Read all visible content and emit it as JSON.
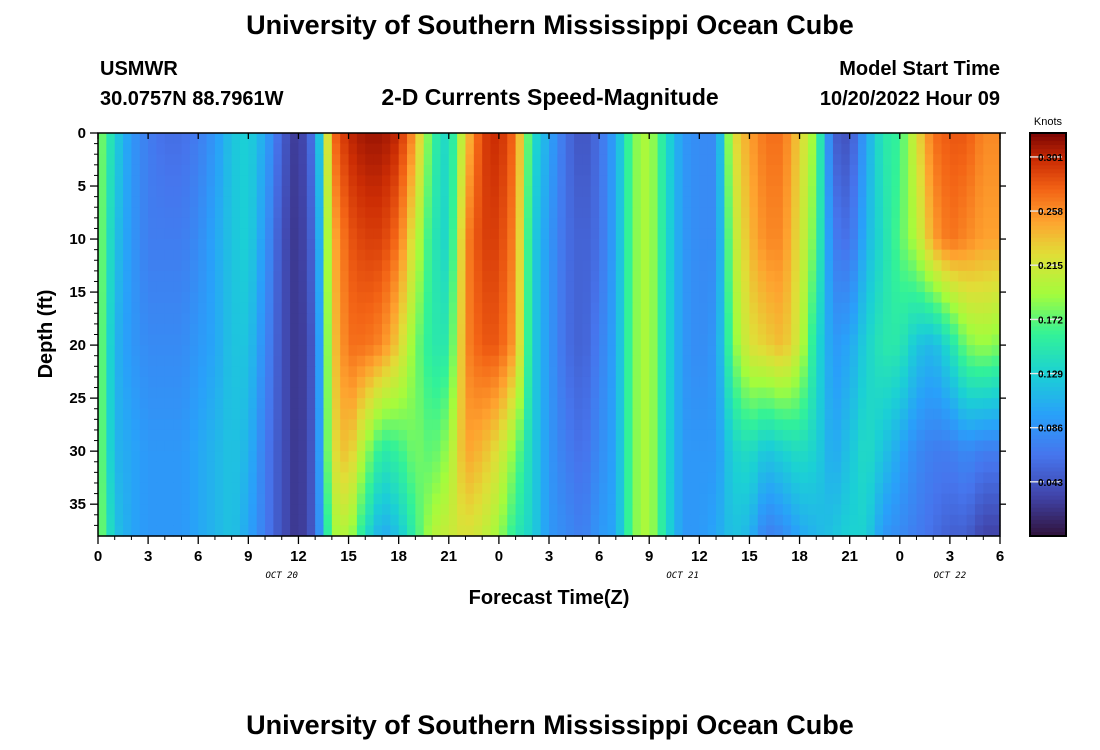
{
  "page": {
    "title": "University of Southern Mississippi Ocean Cube",
    "station": "USMWR",
    "coords": "30.0757N  88.7961W",
    "model_start_label": "Model Start Time",
    "model_start_value": "10/20/2022 Hour 09",
    "footer_title": "University of Southern Mississippi Ocean Cube"
  },
  "chart_data": {
    "type": "heatmap",
    "title": "2-D Currents Speed-Magnitude",
    "xlabel": "Forecast Time(Z)",
    "ylabel": "Depth (ft)",
    "x_tick_labels": [
      "0",
      "3",
      "6",
      "9",
      "12",
      "15",
      "18",
      "21",
      "0",
      "3",
      "6",
      "9",
      "12",
      "15",
      "18",
      "21",
      "0",
      "3",
      "6"
    ],
    "x_hours": [
      0,
      54
    ],
    "y_tick_labels": [
      "0",
      "5",
      "10",
      "15",
      "20",
      "25",
      "30",
      "35"
    ],
    "y_values": [
      0,
      5,
      10,
      15,
      20,
      25,
      30,
      35
    ],
    "ylim": [
      0,
      38
    ],
    "y_inverted": true,
    "date_labels": [
      {
        "text": "OCT 20",
        "hour": 11
      },
      {
        "text": "OCT 21",
        "hour": 35
      },
      {
        "text": "OCT 22",
        "hour": 51
      }
    ],
    "colorbar": {
      "unit": "Knots",
      "min": 0.0,
      "max": 0.32,
      "ticks": [
        "0.301",
        "0.258",
        "0.215",
        "0.172",
        "0.129",
        "0.086",
        "0.043"
      ],
      "tick_values": [
        0.301,
        0.258,
        0.215,
        0.172,
        0.129,
        0.086,
        0.043
      ],
      "colormap": "turbo"
    },
    "profile_hours": [
      0,
      1,
      2,
      3,
      4,
      5,
      6,
      7,
      8,
      9,
      10,
      11,
      12,
      13,
      14,
      15,
      16,
      17,
      18,
      19,
      20,
      21,
      22,
      23,
      24,
      25,
      26,
      27,
      28,
      29,
      30,
      31,
      32,
      33,
      34,
      35,
      36,
      37,
      38,
      39,
      40,
      41,
      42,
      43,
      44,
      45,
      46,
      47,
      48,
      49,
      50,
      51,
      52,
      53,
      54
    ],
    "profile_depths": [
      0,
      10,
      20,
      30,
      38
    ],
    "speed_profiles": [
      [
        0.19,
        0.19,
        0.19,
        0.19,
        0.19
      ],
      [
        0.13,
        0.12,
        0.11,
        0.11,
        0.12
      ],
      [
        0.09,
        0.09,
        0.09,
        0.1,
        0.1
      ],
      [
        0.07,
        0.07,
        0.08,
        0.09,
        0.09
      ],
      [
        0.06,
        0.07,
        0.08,
        0.09,
        0.09
      ],
      [
        0.06,
        0.07,
        0.08,
        0.09,
        0.09
      ],
      [
        0.07,
        0.08,
        0.09,
        0.1,
        0.1
      ],
      [
        0.09,
        0.1,
        0.1,
        0.11,
        0.11
      ],
      [
        0.12,
        0.12,
        0.12,
        0.12,
        0.12
      ],
      [
        0.13,
        0.13,
        0.12,
        0.11,
        0.1
      ],
      [
        0.1,
        0.09,
        0.08,
        0.07,
        0.07
      ],
      [
        0.05,
        0.04,
        0.04,
        0.04,
        0.04
      ],
      [
        0.02,
        0.02,
        0.02,
        0.02,
        0.02
      ],
      [
        0.07,
        0.06,
        0.05,
        0.05,
        0.05
      ],
      [
        0.27,
        0.24,
        0.23,
        0.22,
        0.19
      ],
      [
        0.3,
        0.28,
        0.27,
        0.24,
        0.2
      ],
      [
        0.31,
        0.29,
        0.27,
        0.19,
        0.14
      ],
      [
        0.31,
        0.29,
        0.26,
        0.15,
        0.1
      ],
      [
        0.3,
        0.27,
        0.23,
        0.16,
        0.12
      ],
      [
        0.25,
        0.21,
        0.18,
        0.18,
        0.16
      ],
      [
        0.16,
        0.15,
        0.15,
        0.17,
        0.2
      ],
      [
        0.13,
        0.13,
        0.15,
        0.19,
        0.21
      ],
      [
        0.23,
        0.26,
        0.26,
        0.25,
        0.22
      ],
      [
        0.29,
        0.29,
        0.28,
        0.24,
        0.21
      ],
      [
        0.3,
        0.29,
        0.28,
        0.22,
        0.19
      ],
      [
        0.27,
        0.26,
        0.25,
        0.18,
        0.15
      ],
      [
        0.14,
        0.13,
        0.13,
        0.13,
        0.13
      ],
      [
        0.1,
        0.09,
        0.09,
        0.09,
        0.09
      ],
      [
        0.06,
        0.06,
        0.06,
        0.07,
        0.08
      ],
      [
        0.04,
        0.05,
        0.05,
        0.06,
        0.07
      ],
      [
        0.06,
        0.06,
        0.07,
        0.08,
        0.09
      ],
      [
        0.1,
        0.1,
        0.1,
        0.1,
        0.1
      ],
      [
        0.18,
        0.18,
        0.18,
        0.18,
        0.18
      ],
      [
        0.2,
        0.2,
        0.2,
        0.2,
        0.2
      ],
      [
        0.14,
        0.14,
        0.14,
        0.14,
        0.14
      ],
      [
        0.09,
        0.09,
        0.09,
        0.09,
        0.09
      ],
      [
        0.08,
        0.08,
        0.08,
        0.09,
        0.09
      ],
      [
        0.08,
        0.08,
        0.09,
        0.09,
        0.1
      ],
      [
        0.22,
        0.2,
        0.18,
        0.13,
        0.12
      ],
      [
        0.25,
        0.24,
        0.22,
        0.14,
        0.11
      ],
      [
        0.27,
        0.26,
        0.23,
        0.12,
        0.07
      ],
      [
        0.27,
        0.26,
        0.24,
        0.13,
        0.08
      ],
      [
        0.23,
        0.22,
        0.21,
        0.14,
        0.1
      ],
      [
        0.18,
        0.17,
        0.14,
        0.13,
        0.11
      ],
      [
        0.05,
        0.07,
        0.09,
        0.1,
        0.12
      ],
      [
        0.04,
        0.06,
        0.1,
        0.12,
        0.13
      ],
      [
        0.1,
        0.11,
        0.13,
        0.14,
        0.13
      ],
      [
        0.15,
        0.14,
        0.15,
        0.12,
        0.09
      ],
      [
        0.16,
        0.17,
        0.15,
        0.1,
        0.08
      ],
      [
        0.22,
        0.2,
        0.12,
        0.08,
        0.07
      ],
      [
        0.27,
        0.25,
        0.11,
        0.07,
        0.06
      ],
      [
        0.28,
        0.27,
        0.14,
        0.07,
        0.05
      ],
      [
        0.28,
        0.26,
        0.18,
        0.08,
        0.05
      ],
      [
        0.26,
        0.25,
        0.19,
        0.07,
        0.03
      ],
      [
        0.26,
        0.25,
        0.18,
        0.07,
        0.03
      ]
    ]
  }
}
